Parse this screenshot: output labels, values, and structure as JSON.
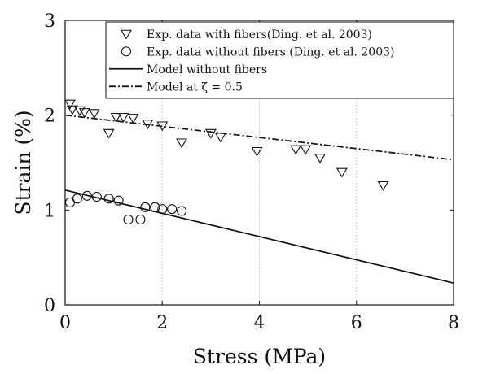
{
  "chart_data": {
    "type": "scatter",
    "xlabel": "Stress (MPa)",
    "ylabel": "Strain (%)",
    "xlim": [
      0,
      8
    ],
    "ylim": [
      0,
      3
    ],
    "x_ticks": [
      "0",
      "2",
      "4",
      "6",
      "8"
    ],
    "y_ticks": [
      "0",
      "1",
      "2",
      "3"
    ],
    "grid": "vertical dotted",
    "legend_placement": "top-right",
    "series": [
      {
        "name": "Exp. data with fibers(Ding. et al. 2003)",
        "kind": "scatter",
        "marker": "triangle-down",
        "points": [
          [
            0.1,
            2.12
          ],
          [
            0.15,
            2.06
          ],
          [
            0.3,
            2.05
          ],
          [
            0.4,
            2.03
          ],
          [
            0.6,
            2.02
          ],
          [
            0.9,
            1.81
          ],
          [
            1.05,
            1.98
          ],
          [
            1.2,
            1.98
          ],
          [
            1.4,
            1.97
          ],
          [
            1.7,
            1.91
          ],
          [
            2.0,
            1.89
          ],
          [
            2.4,
            1.71
          ],
          [
            3.0,
            1.81
          ],
          [
            3.2,
            1.77
          ],
          [
            3.95,
            1.62
          ],
          [
            4.75,
            1.64
          ],
          [
            4.95,
            1.64
          ],
          [
            5.25,
            1.55
          ],
          [
            5.7,
            1.4
          ],
          [
            6.55,
            1.26
          ]
        ]
      },
      {
        "name": "Exp. data without fibers (Ding. et al. 2003)",
        "kind": "scatter",
        "marker": "circle",
        "points": [
          [
            0.1,
            1.08
          ],
          [
            0.25,
            1.12
          ],
          [
            0.45,
            1.15
          ],
          [
            0.65,
            1.14
          ],
          [
            0.9,
            1.12
          ],
          [
            1.1,
            1.1
          ],
          [
            1.3,
            0.9
          ],
          [
            1.55,
            0.9
          ],
          [
            1.65,
            1.03
          ],
          [
            1.85,
            1.03
          ],
          [
            2.0,
            1.01
          ],
          [
            2.2,
            1.01
          ],
          [
            2.4,
            0.99
          ]
        ]
      },
      {
        "name": "Model without fibers",
        "kind": "line",
        "dash": "solid",
        "points": [
          [
            0,
            1.21
          ],
          [
            8,
            0.23
          ]
        ]
      },
      {
        "name": "Model at ζ = 0.5",
        "kind": "line",
        "dash": "dashdot",
        "points": [
          [
            0,
            2.0
          ],
          [
            8,
            1.53
          ]
        ]
      }
    ]
  }
}
